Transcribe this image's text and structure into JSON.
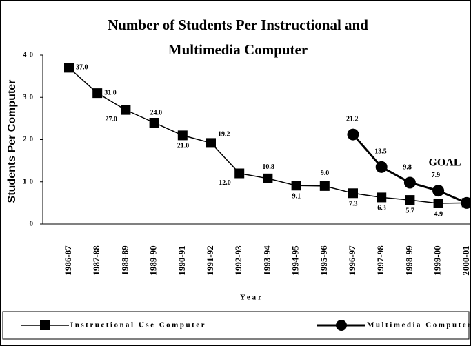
{
  "chart_data": {
    "type": "line",
    "title": [
      "Number of Students Per Instructional and",
      "Multimedia Computer"
    ],
    "x_label": "Year",
    "y_label": "Students Per Computer",
    "categories": [
      "1986-87",
      "1987-88",
      "1988-89",
      "1989-90",
      "1990-91",
      "1991-92",
      "1992-93",
      "1993-94",
      "1994-95",
      "1995-96",
      "1996-97",
      "1997-98",
      "1998-99",
      "1999-00",
      "2000-01"
    ],
    "series": [
      {
        "name": "Instructional Use Computer",
        "color": "#000000",
        "marker": "square",
        "values": [
          37.0,
          31.0,
          27.0,
          24.0,
          21.0,
          19.2,
          12.0,
          10.8,
          9.1,
          9.0,
          7.3,
          6.3,
          5.7,
          4.9,
          5.0
        ],
        "value_labels": [
          "37.0",
          "31.0",
          "27.0",
          "24.0",
          "21.0",
          "19.2",
          "12.0",
          "10.8",
          "9.1",
          "9.0",
          "7.3",
          "6.3",
          "5.7",
          "4.9",
          "5.0"
        ]
      },
      {
        "name": "Multimedia Computer",
        "color": "#000000",
        "marker": "circle",
        "values": [
          null,
          null,
          null,
          null,
          null,
          null,
          null,
          null,
          null,
          null,
          21.2,
          13.5,
          9.8,
          7.9,
          5.0
        ],
        "value_labels": [
          null,
          null,
          null,
          null,
          null,
          null,
          null,
          null,
          null,
          null,
          "21.2",
          "13.5",
          "9.8",
          "7.9",
          null
        ]
      }
    ],
    "annotation": "GOAL",
    "ylim": [
      0,
      40
    ],
    "yticks": [
      0,
      10,
      20,
      30,
      40
    ],
    "grid": false,
    "legend": "bottom"
  }
}
